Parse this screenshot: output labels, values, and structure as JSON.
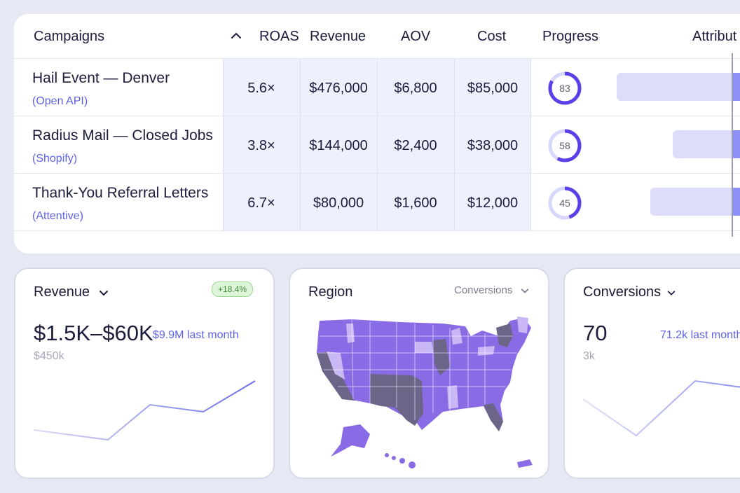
{
  "table": {
    "headers": {
      "campaigns": "Campaigns",
      "roas": "ROAS",
      "revenue": "Revenue",
      "aov": "AOV",
      "cost": "Cost",
      "progress": "Progress",
      "attribution": "Attribut"
    },
    "rows": [
      {
        "name": "Hail Event — Denver",
        "source": "(Open API)",
        "roas": "5.6×",
        "revenue": "$476,000",
        "aov": "$6,800",
        "cost": "$85,000",
        "progress": 83,
        "progress_label": "83"
      },
      {
        "name": "Radius Mail — Closed Jobs",
        "source": "(Shopify)",
        "roas": "3.8×",
        "revenue": "$144,000",
        "aov": "$2,400",
        "cost": "$38,000",
        "progress": 58,
        "progress_label": "58"
      },
      {
        "name": "Thank-You Referral Letters",
        "source": "(Attentive)",
        "roas": "6.7×",
        "revenue": "$80,000",
        "aov": "$1,600",
        "cost": "$12,000",
        "progress": 45,
        "progress_label": "45"
      }
    ]
  },
  "revenue_card": {
    "title": "Revenue",
    "badge": "+18.4%",
    "value": "$1.5K–$60K",
    "comparison": "$9.9M last month",
    "secondary": "$450k"
  },
  "region_card": {
    "title": "Region",
    "metric_select": "Conversions"
  },
  "conversions_card": {
    "title": "Conversions",
    "value": "70",
    "comparison": "71.2k last month",
    "secondary": "3k"
  },
  "colors": {
    "accent": "#5e63e8",
    "ring_track": "#d6d7fb",
    "ring_fill": "#5b3fe8",
    "map_light": "#c9b8f5",
    "map_mid": "#8a6be6",
    "map_dark": "#6c6587",
    "badge_green": "#3d8b35"
  },
  "icons": {
    "sort": "chevron-up-icon",
    "dropdown": "chevron-down-icon"
  }
}
